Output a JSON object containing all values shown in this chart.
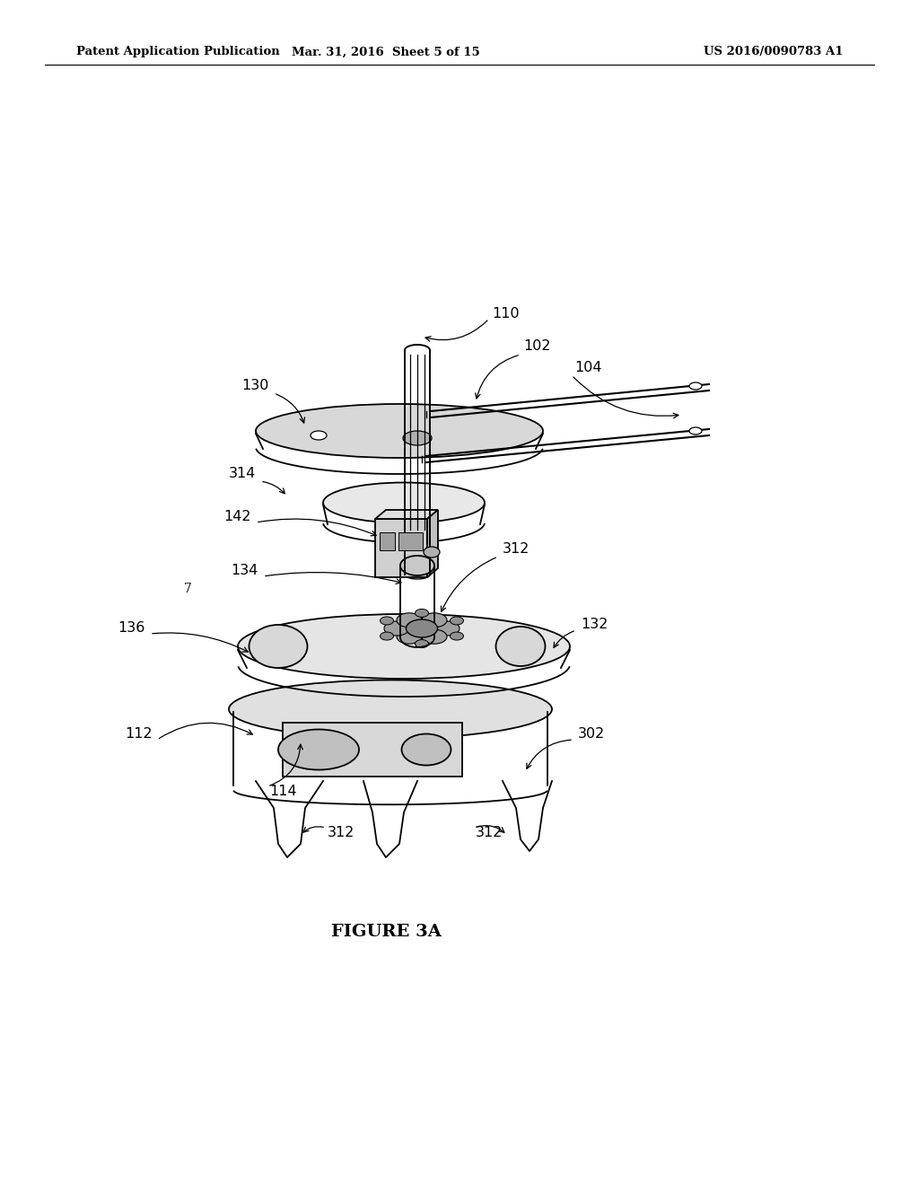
{
  "title_left": "Patent Application Publication",
  "title_mid": "Mar. 31, 2016  Sheet 5 of 15",
  "title_right": "US 2016/0090783 A1",
  "figure_caption": "FIGURE 3A",
  "background_color": "#ffffff",
  "line_color": "#000000",
  "gray_light": "#d8d8d8",
  "gray_mid": "#b0b0b0",
  "gray_dark": "#888888"
}
